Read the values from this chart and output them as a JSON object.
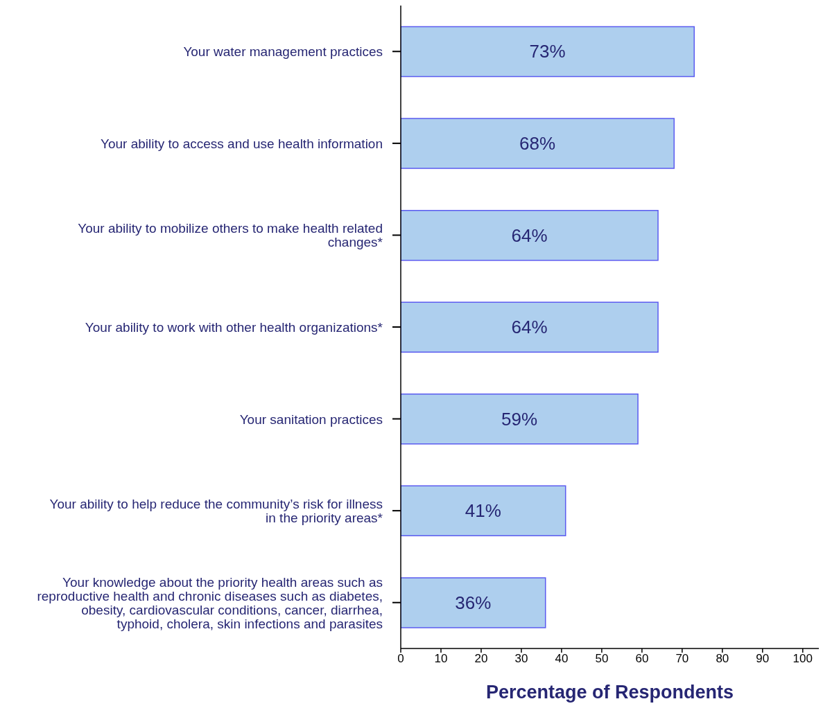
{
  "chart_data": {
    "type": "bar",
    "orientation": "horizontal",
    "xlabel": "Percentage of Respondents",
    "categories": [
      "Your water management practices",
      "Your ability to access and use health information",
      "Your ability to mobilize others to make health related changes*",
      "Your ability to work with other health organizations*",
      "Your sanitation practices",
      "Your ability to help reduce the community’s risk for illness in the priority areas*",
      "Your knowledge about the priority health areas such as reproductive health and  chronic diseases such as diabetes, obesity, cardiovascular conditions, cancer, diarrhea, typhoid, cholera, skin infections and parasites"
    ],
    "values": [
      73,
      68,
      64,
      64,
      59,
      41,
      36
    ],
    "value_labels": [
      "73%",
      "68%",
      "64%",
      "64%",
      "59%",
      "41%",
      "36%"
    ],
    "color": "#aecfee",
    "xlim": [
      0,
      104
    ],
    "xticks": [
      0,
      10,
      20,
      30,
      40,
      50,
      60,
      70,
      80,
      90,
      100
    ]
  }
}
